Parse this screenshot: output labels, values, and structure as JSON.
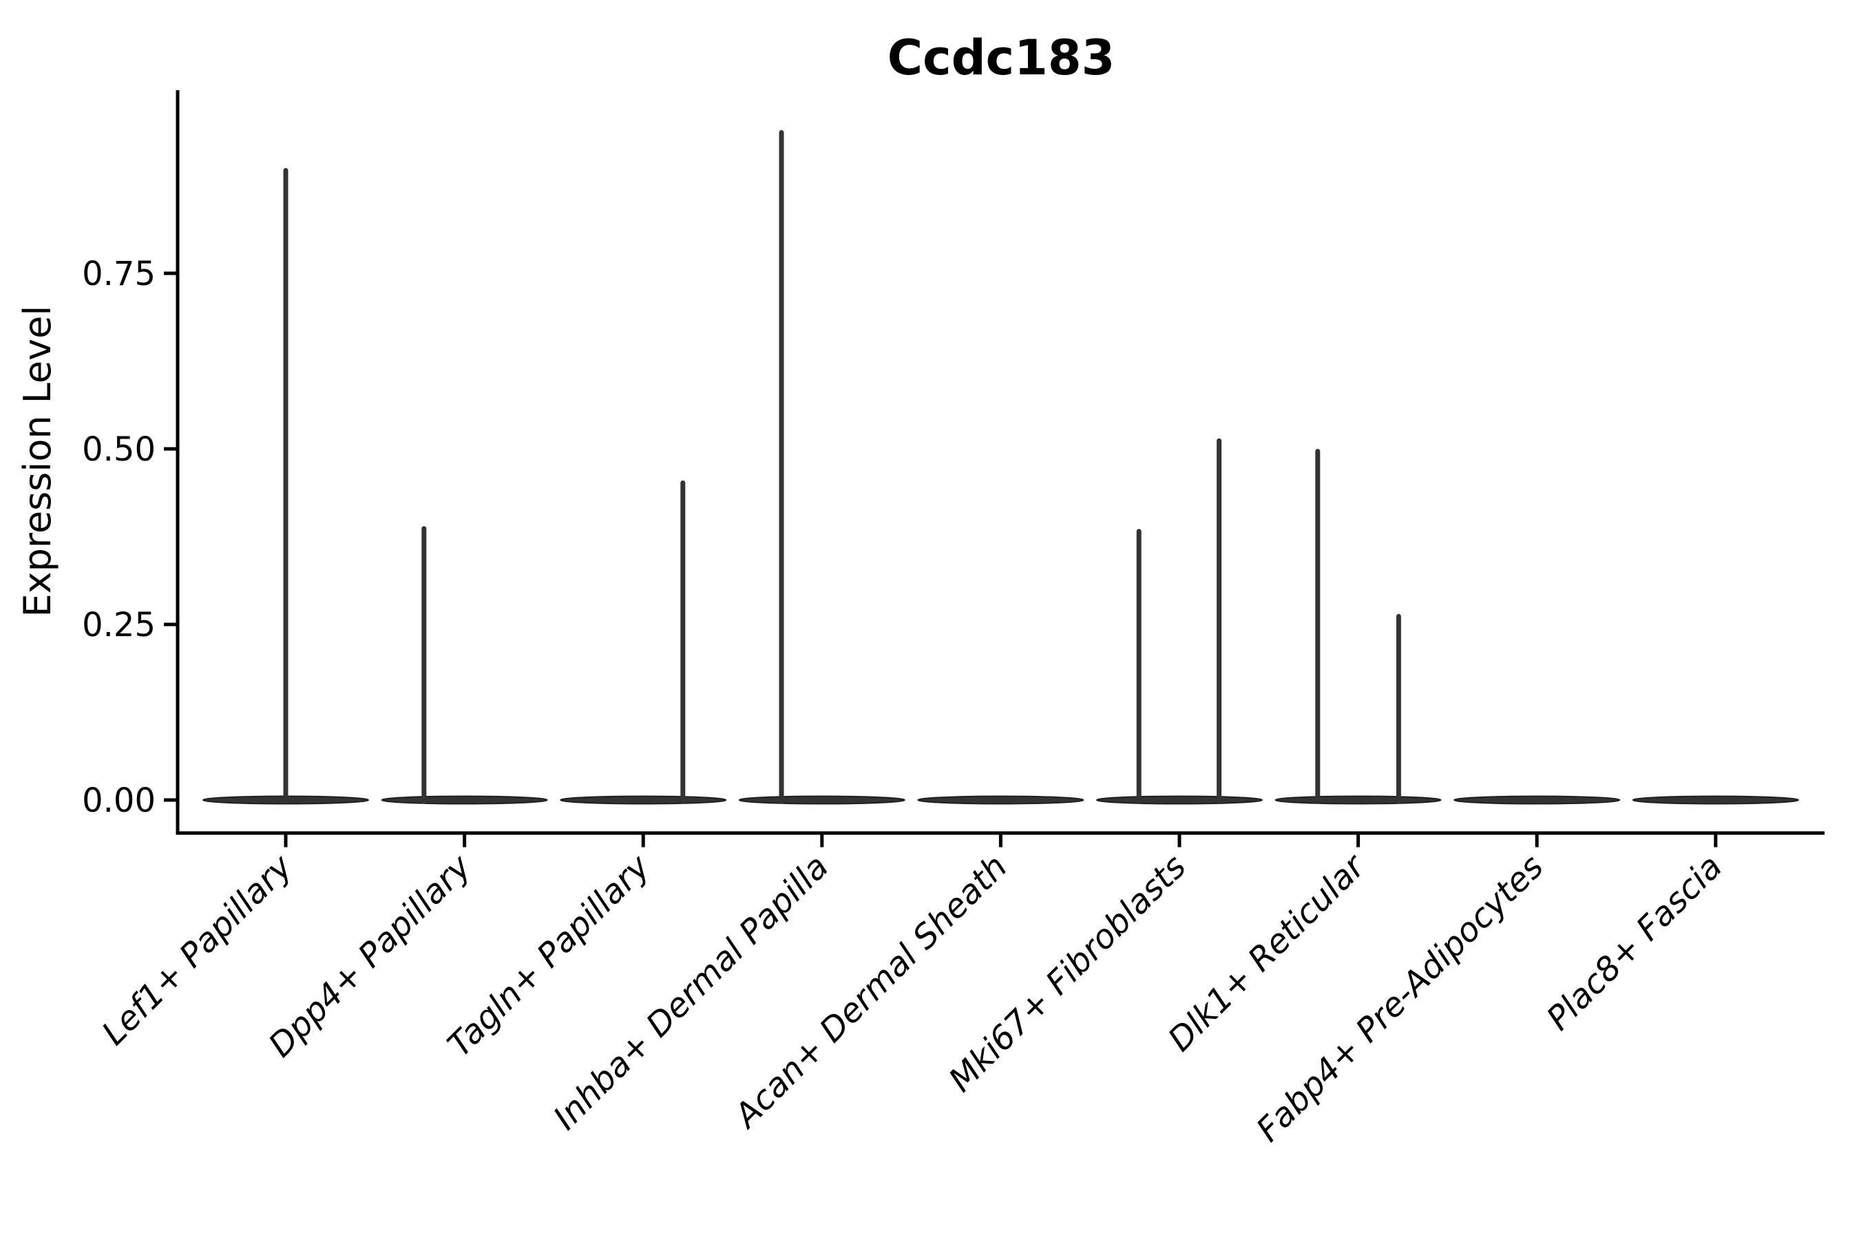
{
  "figure": {
    "background": "#ffffff"
  },
  "chart_data": {
    "type": "violin",
    "title": "Ccdc183",
    "xlabel": "",
    "ylabel": "Expression Level",
    "ylim": [
      0,
      1.01
    ],
    "yticks": [
      0.0,
      0.25,
      0.5,
      0.75
    ],
    "ytick_labels": [
      "0.00",
      "0.25",
      "0.50",
      "0.75"
    ],
    "grid": false,
    "legend": null,
    "colors": {
      "violin_fill": "#333333",
      "violin_edge": "#1f1f1f",
      "axis": "#000000"
    },
    "categories": [
      "Lef1+ Papillary",
      "Dpp4+ Papillary",
      "Tagln+ Papillary",
      "Inhba+ Dermal Papilla",
      "Acan+ Dermal Sheath",
      "Mki67+ Fibroblasts",
      "Dlk1+ Reticular",
      "Fabp4+ Pre-Adipocytes",
      "Plac8+ Fascia"
    ],
    "series": [
      {
        "category": "Lef1+ Papillary",
        "baseline_value": 0.0,
        "spikes": [
          {
            "x_offset_frac": 0.0,
            "max_value": 0.9
          }
        ]
      },
      {
        "category": "Dpp4+ Papillary",
        "baseline_value": 0.0,
        "spikes": [
          {
            "x_offset_frac": -0.49,
            "max_value": 0.39
          }
        ]
      },
      {
        "category": "Tagln+ Papillary",
        "baseline_value": 0.0,
        "spikes": [
          {
            "x_offset_frac": 0.48,
            "max_value": 0.455
          }
        ]
      },
      {
        "category": "Inhba+ Dermal Papilla",
        "baseline_value": 0.0,
        "spikes": [
          {
            "x_offset_frac": -0.49,
            "max_value": 0.954
          }
        ]
      },
      {
        "category": "Acan+ Dermal Sheath",
        "baseline_value": 0.0,
        "spikes": []
      },
      {
        "category": "Mki67+ Fibroblasts",
        "baseline_value": 0.0,
        "spikes": [
          {
            "x_offset_frac": -0.49,
            "max_value": 0.386
          },
          {
            "x_offset_frac": 0.48,
            "max_value": 0.515
          }
        ]
      },
      {
        "category": "Dlk1+ Reticular",
        "baseline_value": 0.0,
        "spikes": [
          {
            "x_offset_frac": -0.49,
            "max_value": 0.5
          },
          {
            "x_offset_frac": 0.49,
            "max_value": 0.265
          }
        ]
      },
      {
        "category": "Fabp4+ Pre-Adipocytes",
        "baseline_value": 0.0,
        "spikes": []
      },
      {
        "category": "Plac8+ Fascia",
        "baseline_value": 0.0,
        "spikes": []
      }
    ]
  }
}
